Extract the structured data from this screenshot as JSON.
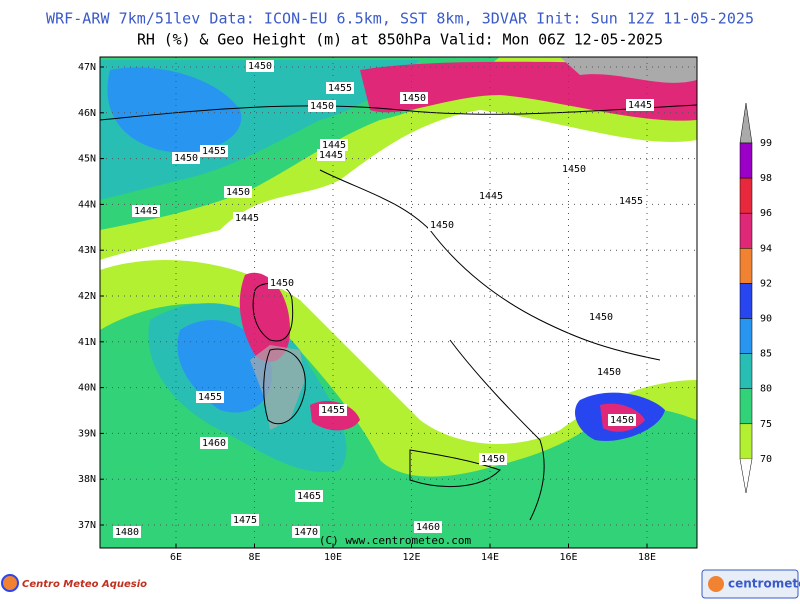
{
  "header": {
    "title": "WRF-ARW 7km/51lev  Data: ICON-EU 6.5km, SST 8km, 3DVAR  Init: Sun 12Z 11-05-2025",
    "subtitle": "RH (%) & Geo Height (m) at 850hPa  Valid: Mon 06Z 12-05-2025"
  },
  "map": {
    "lat_labels": [
      "47N",
      "46N",
      "45N",
      "44N",
      "43N",
      "42N",
      "41N",
      "40N",
      "39N",
      "38N",
      "37N"
    ],
    "lon_labels": [
      "6E",
      "8E",
      "10E",
      "12E",
      "14E",
      "16E",
      "18E"
    ],
    "contour_labels": [
      "1450",
      "1455",
      "1450",
      "1450",
      "1445",
      "1455",
      "1450",
      "1445",
      "1445",
      "1450",
      "1445",
      "1450",
      "1445",
      "1445",
      "1455",
      "1450",
      "1450",
      "1450",
      "1450",
      "1455",
      "1455",
      "1450",
      "1460",
      "1450",
      "1465",
      "1475",
      "1470",
      "1480",
      "1460"
    ],
    "credit": "(C) www.centrometeo.com"
  },
  "legend": {
    "levels": [
      99,
      98,
      96,
      94,
      92,
      90,
      85,
      80,
      75,
      70
    ],
    "colors": [
      "#9a00c8",
      "#e8283c",
      "#e02878",
      "#f08232",
      "#2846f0",
      "#2896f0",
      "#28beb4",
      "#32d278",
      "#b4f032"
    ]
  },
  "footer": {
    "left_logo": "Centro Meteo Aquesio",
    "right_logo": "centrometeo"
  }
}
